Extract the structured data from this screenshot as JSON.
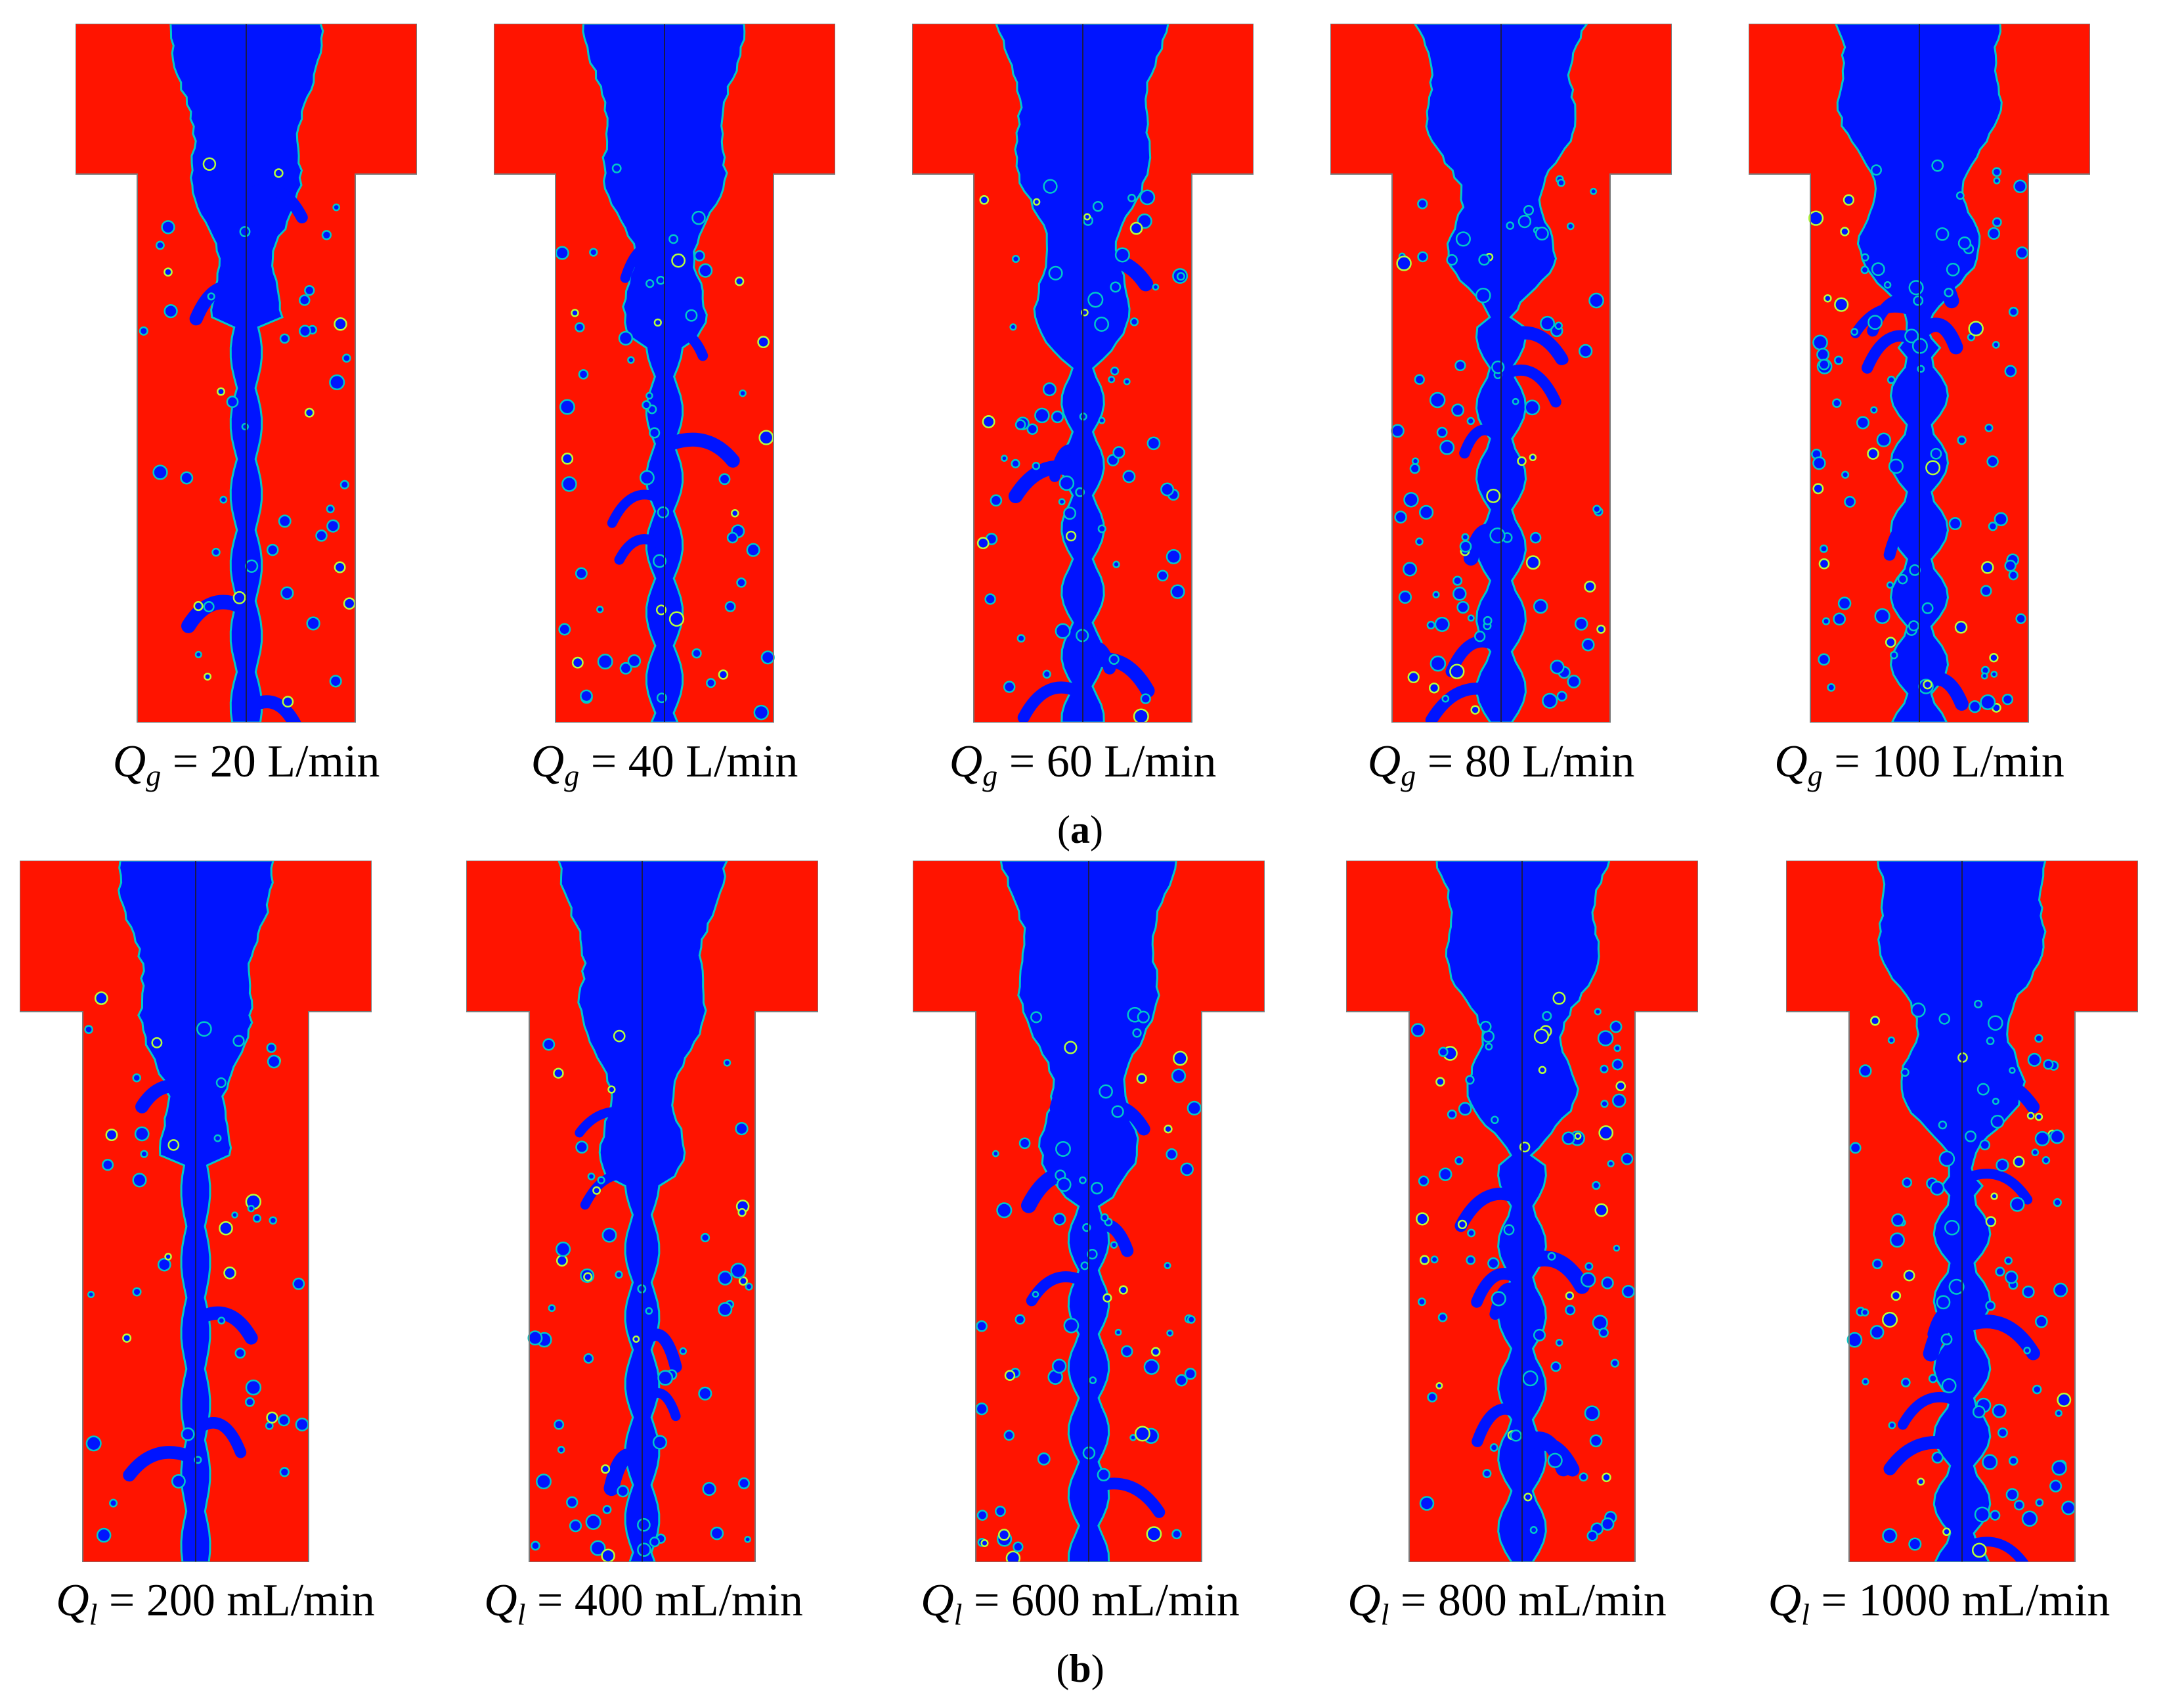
{
  "colors": {
    "liquid": "#ff1400",
    "gas": "#0014ff",
    "interface": "#00c8c8",
    "highlight": "#b4ff3c",
    "centerline": "#1a1a4a",
    "background": "#ffffff"
  },
  "rows": [
    {
      "label": "a",
      "symbol": "Q",
      "subscript": "g",
      "panels": [
        {
          "value": "= 20 L/min"
        },
        {
          "value": "= 40 L/min"
        },
        {
          "value": "= 60 L/min"
        },
        {
          "value": "= 80 L/min"
        },
        {
          "value": "= 100 L/min"
        }
      ]
    },
    {
      "label": "b",
      "symbol": "Q",
      "subscript": "l",
      "panels": [
        {
          "value": "= 200 mL/min"
        },
        {
          "value": "= 400 mL/min"
        },
        {
          "value": "= 600 mL/min"
        },
        {
          "value": "= 800 mL/min"
        },
        {
          "value": "= 1000 mL/min"
        }
      ]
    }
  ]
}
